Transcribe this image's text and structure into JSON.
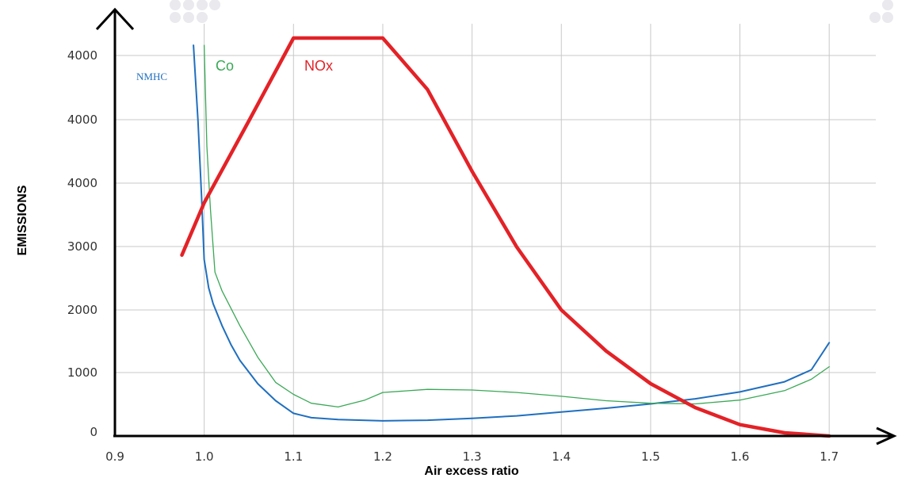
{
  "chart_data": {
    "type": "line",
    "title": "",
    "xlabel": "Air excess ratio",
    "ylabel": "EMISSIONS",
    "x_ticks": [
      "0.9",
      "1.0",
      "1.1",
      "1.2",
      "1.3",
      "1.4",
      "1.5",
      "1.6",
      "1.7"
    ],
    "x_tick_values": [
      0.9,
      1.0,
      1.1,
      1.2,
      1.3,
      1.4,
      1.5,
      1.6,
      1.7
    ],
    "y_ticks": [
      "0",
      "1000",
      "2000",
      "3000",
      "4000",
      "4000",
      "4000"
    ],
    "xlim": [
      0.9,
      1.7
    ],
    "grid": true,
    "legend": "labels placed next to curves",
    "series": [
      {
        "name": "NMHC",
        "color": "#1f6fbf",
        "points": [
          [
            0.988,
            6200
          ],
          [
            0.993,
            5000
          ],
          [
            0.997,
            3800
          ],
          [
            1.0,
            2800
          ],
          [
            1.005,
            2350
          ],
          [
            1.01,
            2100
          ],
          [
            1.02,
            1750
          ],
          [
            1.03,
            1450
          ],
          [
            1.04,
            1200
          ],
          [
            1.06,
            830
          ],
          [
            1.08,
            560
          ],
          [
            1.1,
            360
          ],
          [
            1.12,
            290
          ],
          [
            1.15,
            260
          ],
          [
            1.2,
            240
          ],
          [
            1.25,
            250
          ],
          [
            1.3,
            280
          ],
          [
            1.35,
            320
          ],
          [
            1.4,
            380
          ],
          [
            1.45,
            440
          ],
          [
            1.5,
            510
          ],
          [
            1.55,
            590
          ],
          [
            1.6,
            700
          ],
          [
            1.65,
            860
          ],
          [
            1.68,
            1050
          ],
          [
            1.7,
            1480
          ]
        ]
      },
      {
        "name": "Co",
        "color": "#3aa856",
        "points": [
          [
            1.0,
            6200
          ],
          [
            1.003,
            4600
          ],
          [
            1.007,
            3600
          ],
          [
            1.012,
            2600
          ],
          [
            1.02,
            2300
          ],
          [
            1.04,
            1750
          ],
          [
            1.06,
            1250
          ],
          [
            1.08,
            850
          ],
          [
            1.1,
            660
          ],
          [
            1.12,
            520
          ],
          [
            1.15,
            460
          ],
          [
            1.18,
            570
          ],
          [
            1.2,
            690
          ],
          [
            1.25,
            740
          ],
          [
            1.3,
            730
          ],
          [
            1.35,
            690
          ],
          [
            1.4,
            630
          ],
          [
            1.45,
            560
          ],
          [
            1.5,
            520
          ],
          [
            1.55,
            510
          ],
          [
            1.6,
            570
          ],
          [
            1.65,
            720
          ],
          [
            1.68,
            900
          ],
          [
            1.7,
            1100
          ]
        ]
      },
      {
        "name": "NOx",
        "color": "#e32227",
        "points": [
          [
            0.975,
            2870
          ],
          [
            1.0,
            3700
          ],
          [
            1.05,
            5000
          ],
          [
            1.1,
            6400
          ],
          [
            1.12,
            6700
          ],
          [
            1.15,
            6800
          ],
          [
            1.18,
            6700
          ],
          [
            1.2,
            6450
          ],
          [
            1.25,
            5500
          ],
          [
            1.3,
            4200
          ],
          [
            1.35,
            3000
          ],
          [
            1.4,
            2000
          ],
          [
            1.45,
            1350
          ],
          [
            1.5,
            830
          ],
          [
            1.55,
            450
          ],
          [
            1.6,
            180
          ],
          [
            1.65,
            50
          ],
          [
            1.7,
            0
          ]
        ]
      }
    ]
  }
}
